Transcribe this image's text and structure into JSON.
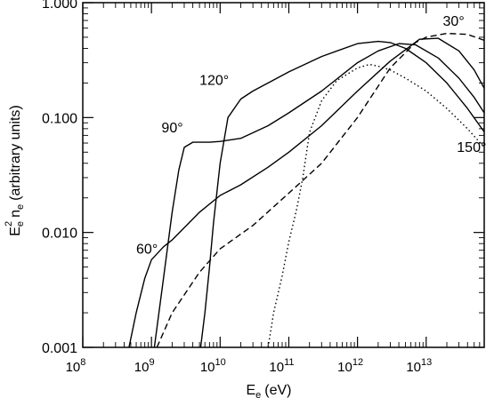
{
  "chart_data": {
    "type": "line",
    "title": "",
    "xlabel": {
      "base": "E",
      "sub": "e",
      "unit": "(eV)"
    },
    "ylabel": {
      "base": "E",
      "sub": "e",
      "sup": "2",
      "mid": "n",
      "sub2": "e",
      "rest": "(arbitrary units)"
    },
    "xscale": "log",
    "yscale": "log",
    "xlim": [
      100000000.0,
      70000000000000.0
    ],
    "ylim": [
      0.001,
      1.0
    ],
    "x_ticks": [
      {
        "base": "10",
        "exp": "8"
      },
      {
        "base": "10",
        "exp": "9"
      },
      {
        "base": "10",
        "exp": "10"
      },
      {
        "base": "10",
        "exp": "11"
      },
      {
        "base": "10",
        "exp": "12"
      },
      {
        "base": "10",
        "exp": "13"
      }
    ],
    "y_ticks": [
      "0.001",
      "0.010",
      "0.100",
      "1.000"
    ],
    "grid": false,
    "series": [
      {
        "name": "30°",
        "style": "dashed",
        "x": [
          1200000000.0,
          2000000000.0,
          5000000000.0,
          10000000000.0,
          30000000000.0,
          100000000000.0,
          300000000000.0,
          1000000000000.0,
          3000000000000.0,
          7000000000000.0,
          10000000000000.0,
          20000000000000.0,
          40000000000000.0,
          70000000000000.0
        ],
        "y": [
          0.001,
          0.002,
          0.0045,
          0.0072,
          0.0115,
          0.022,
          0.04,
          0.1,
          0.27,
          0.45,
          0.5,
          0.54,
          0.53,
          0.47
        ]
      },
      {
        "name": "60°",
        "style": "solid",
        "x": [
          470000000.0,
          600000000.0,
          800000000.0,
          1000000000.0,
          1500000000.0,
          2000000000.0,
          3000000000.0,
          5000000000.0,
          10000000000.0,
          20000000000.0,
          50000000000.0,
          100000000000.0,
          300000000000.0,
          1000000000000.0,
          3000000000000.0,
          8000000000000.0,
          15000000000000.0,
          30000000000000.0,
          50000000000000.0,
          70000000000000.0
        ],
        "y": [
          0.001,
          0.002,
          0.004,
          0.0058,
          0.0075,
          0.0086,
          0.011,
          0.015,
          0.021,
          0.026,
          0.037,
          0.05,
          0.085,
          0.17,
          0.31,
          0.48,
          0.49,
          0.38,
          0.26,
          0.18
        ]
      },
      {
        "name": "90°",
        "style": "solid",
        "x": [
          1100000000.0,
          1500000000.0,
          2000000000.0,
          2500000000.0,
          3000000000.0,
          4000000000.0,
          5000000000.0,
          7000000000.0,
          10000000000.0,
          20000000000.0,
          50000000000.0,
          100000000000.0,
          300000000000.0,
          1000000000000.0,
          2000000000000.0,
          4000000000000.0,
          7000000000000.0,
          15000000000000.0,
          30000000000000.0,
          50000000000000.0,
          70000000000000.0
        ],
        "y": [
          0.001,
          0.004,
          0.015,
          0.035,
          0.055,
          0.061,
          0.061,
          0.061,
          0.062,
          0.066,
          0.085,
          0.11,
          0.17,
          0.3,
          0.38,
          0.44,
          0.43,
          0.33,
          0.22,
          0.15,
          0.11
        ]
      },
      {
        "name": "120°",
        "style": "solid",
        "x": [
          5200000000.0,
          6000000000.0,
          7000000000.0,
          8000000000.0,
          10000000000.0,
          13000000000.0,
          20000000000.0,
          30000000000.0,
          50000000000.0,
          100000000000.0,
          300000000000.0,
          1000000000000.0,
          2000000000000.0,
          3000000000000.0,
          5000000000000.0,
          10000000000000.0,
          20000000000000.0,
          40000000000000.0,
          70000000000000.0
        ],
        "y": [
          0.001,
          0.002,
          0.005,
          0.012,
          0.04,
          0.1,
          0.145,
          0.17,
          0.2,
          0.25,
          0.34,
          0.44,
          0.46,
          0.45,
          0.4,
          0.3,
          0.2,
          0.12,
          0.075
        ]
      },
      {
        "name": "150°",
        "style": "dotted",
        "x": [
          50000000000.0,
          60000000000.0,
          80000000000.0,
          100000000000.0,
          130000000000.0,
          160000000000.0,
          200000000000.0,
          300000000000.0,
          500000000000.0,
          1000000000000.0,
          1500000000000.0,
          2000000000000.0,
          3000000000000.0,
          5000000000000.0,
          10000000000000.0,
          20000000000000.0,
          40000000000000.0,
          70000000000000.0
        ],
        "y": [
          0.001,
          0.002,
          0.0042,
          0.0083,
          0.016,
          0.03,
          0.074,
          0.14,
          0.21,
          0.27,
          0.29,
          0.28,
          0.26,
          0.22,
          0.17,
          0.12,
          0.08,
          0.055
        ]
      }
    ],
    "annotations": [
      {
        "text": "30°",
        "x": 17500000000000.0,
        "y": 0.7
      },
      {
        "text": "60°",
        "x": 600000000.0,
        "y": 0.0073
      },
      {
        "text": "90°",
        "x": 1400000000.0,
        "y": 0.083
      },
      {
        "text": "120°",
        "x": 5000000000.0,
        "y": 0.215
      },
      {
        "text": "150°",
        "x": 28000000000000.0,
        "y": 0.056
      }
    ]
  }
}
